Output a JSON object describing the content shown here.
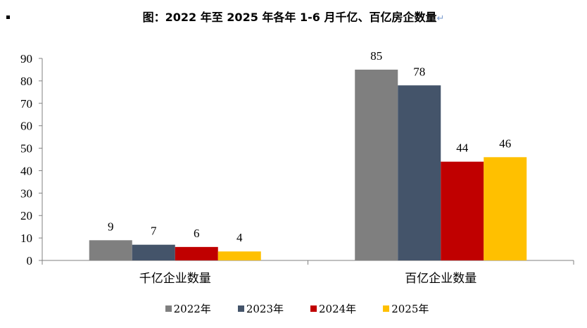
{
  "chart_data": {
    "type": "bar",
    "title": "图：2022 年至 2025 年各年 1-6 月千亿、百亿房企数量",
    "title_mark": "↵",
    "categories": [
      "千亿企业数量",
      "百亿企业数量"
    ],
    "series": [
      {
        "name": "2022年",
        "values": [
          9,
          85
        ],
        "color": "#7f7f7f"
      },
      {
        "name": "2023年",
        "values": [
          7,
          78
        ],
        "color": "#44546a"
      },
      {
        "name": "2024年",
        "values": [
          6,
          44
        ],
        "color": "#c00000"
      },
      {
        "name": "2025年",
        "values": [
          4,
          46
        ],
        "color": "#ffc000"
      }
    ],
    "ylim": [
      0,
      90
    ],
    "yticks": [
      "0",
      "10",
      "20",
      "30",
      "40",
      "50",
      "60",
      "70",
      "80",
      "90"
    ],
    "grid": false,
    "legend": "bottom",
    "xlabel": "",
    "ylabel": ""
  }
}
